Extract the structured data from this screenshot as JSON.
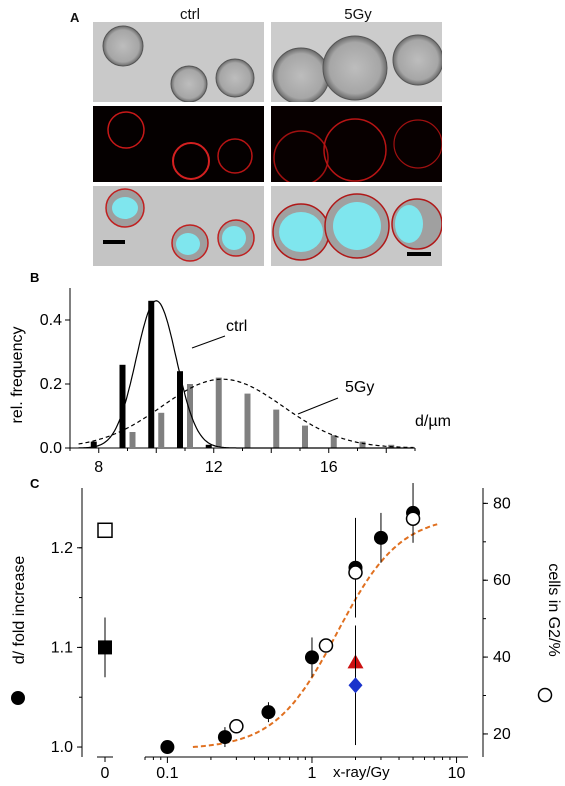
{
  "panel_a": {
    "letter": "A",
    "col_left": "ctrl",
    "col_right": "5Gy"
  },
  "panel_b": {
    "letter": "B",
    "ylabel": "rel. frequency",
    "xlabel": "d/µm",
    "yticks": [
      "0.0",
      "0.2",
      "0.4"
    ],
    "xticks": [
      "8",
      "12",
      "16"
    ],
    "label_ctrl": "ctrl",
    "label_5gy": "5Gy"
  },
  "panel_c": {
    "letter": "C",
    "ylabel_left": "d/ fold increase",
    "ylabel_right": "cells in G2/%",
    "xlabel": "x-ray/Gy",
    "yticks_left": [
      "1.0",
      "1.1",
      "1.2"
    ],
    "yticks_right": [
      "20",
      "40",
      "60",
      "80"
    ],
    "xticks": [
      "0",
      "0.1",
      "1",
      "10"
    ]
  },
  "chart_data": [
    {
      "type": "bar",
      "ylabel": "rel. frequency",
      "xlabel": "d/µm",
      "xlim": [
        7,
        19
      ],
      "ylim": [
        0,
        0.5
      ],
      "series": [
        {
          "name": "ctrl",
          "color": "#000000",
          "x": [
            8,
            9,
            10,
            11,
            12
          ],
          "values": [
            0.02,
            0.26,
            0.46,
            0.24,
            0.01
          ]
        },
        {
          "name": "5Gy",
          "color": "#808080",
          "x": [
            9,
            10,
            11,
            12,
            13,
            14,
            15,
            16,
            17,
            18
          ],
          "values": [
            0.05,
            0.11,
            0.2,
            0.22,
            0.17,
            0.12,
            0.07,
            0.04,
            0.02,
            0.01
          ]
        }
      ],
      "fits": [
        {
          "name": "ctrl",
          "style": "solid",
          "mean": 10,
          "sd": 0.7,
          "peak": 0.46
        },
        {
          "name": "5Gy",
          "style": "dashed",
          "mean": 12.3,
          "sd": 2.1,
          "peak": 0.215
        }
      ]
    },
    {
      "type": "scatter",
      "xlabel": "x-ray/Gy",
      "ylabel": "d/ fold increase",
      "ylabel_right": "cells in G2/%",
      "x_scale": "log",
      "xlim": [
        0.07,
        12
      ],
      "ylim": [
        0.99,
        1.26
      ],
      "ylim_right": [
        14,
        84
      ],
      "series": [
        {
          "name": "d fold increase",
          "marker": "filled-circle",
          "color": "#000000",
          "x": [
            0.1,
            0.25,
            0.5,
            1,
            2,
            3,
            5
          ],
          "y": [
            1.0,
            1.01,
            1.035,
            1.09,
            1.18,
            1.21,
            1.235
          ],
          "err": [
            0,
            0.01,
            0.01,
            0.02,
            0.05,
            0.025,
            0.03
          ]
        },
        {
          "name": "cells in G2",
          "marker": "open-circle",
          "axis": "right",
          "color": "#000000",
          "x": [
            0.3,
            1.25,
            2,
            5
          ],
          "y": [
            22,
            43,
            62,
            76
          ]
        },
        {
          "name": "control d",
          "marker": "filled-square",
          "x": [
            0
          ],
          "y": [
            1.1
          ],
          "err": [
            0.03
          ]
        },
        {
          "name": "control G2",
          "marker": "open-square",
          "axis": "right",
          "x": [
            0
          ],
          "y": [
            73
          ]
        },
        {
          "name": "triangle",
          "marker": "filled-triangle",
          "color": "#cc1111",
          "x": [
            2
          ],
          "y": [
            1.085
          ]
        },
        {
          "name": "diamond",
          "marker": "filled-diamond",
          "color": "#1a33cc",
          "x": [
            2
          ],
          "y": [
            1.062
          ],
          "err": [
            0.06
          ]
        }
      ],
      "fit": {
        "style": "dashed",
        "color": "#e07020",
        "y_min": 16,
        "y_max": 77,
        "midpoint": 1.5,
        "steepness": 2.0
      }
    }
  ]
}
